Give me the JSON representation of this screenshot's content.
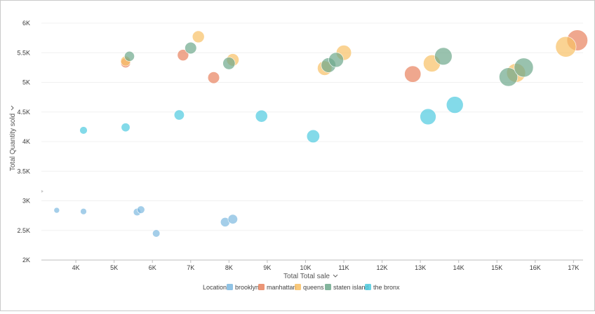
{
  "chart_data": {
    "type": "scatter",
    "variant": "bubble",
    "xlabel": "Total Total sale",
    "ylabel": "Total Quantity sold",
    "xlim": [
      3100,
      17250
    ],
    "ylim": [
      2000,
      6000
    ],
    "x_ticks": [
      {
        "value": 4000,
        "label": "4K"
      },
      {
        "value": 5000,
        "label": "5K"
      },
      {
        "value": 6000,
        "label": "6K"
      },
      {
        "value": 7000,
        "label": "7K"
      },
      {
        "value": 8000,
        "label": "8K"
      },
      {
        "value": 9000,
        "label": "9K"
      },
      {
        "value": 10000,
        "label": "10K"
      },
      {
        "value": 11000,
        "label": "11K"
      },
      {
        "value": 12000,
        "label": "12K"
      },
      {
        "value": 13000,
        "label": "13K"
      },
      {
        "value": 14000,
        "label": "14K"
      },
      {
        "value": 15000,
        "label": "15K"
      },
      {
        "value": 16000,
        "label": "16K"
      },
      {
        "value": 17000,
        "label": "17K"
      }
    ],
    "y_ticks": [
      {
        "value": 2000,
        "label": "2K"
      },
      {
        "value": 2500,
        "label": "2.5K"
      },
      {
        "value": 3000,
        "label": "3K"
      },
      {
        "value": 3500,
        "label": "3.5K"
      },
      {
        "value": 4000,
        "label": "4K"
      },
      {
        "value": 4500,
        "label": "4.5K"
      },
      {
        "value": 5000,
        "label": "5K"
      },
      {
        "value": 5500,
        "label": "5.5K"
      },
      {
        "value": 6000,
        "label": "6K"
      }
    ],
    "grid": true,
    "legend_title": "Location",
    "legend_position": "bottom",
    "series": [
      {
        "name": "brooklyn",
        "color": "#7db9e0",
        "points": [
          [
            3500,
            2840
          ],
          [
            4200,
            2820
          ],
          [
            5600,
            2810
          ],
          [
            5700,
            2850
          ],
          [
            6100,
            2450
          ],
          [
            7900,
            2640
          ],
          [
            8100,
            2690
          ]
        ]
      },
      {
        "name": "manhattan",
        "color": "#e8825e",
        "points": [
          [
            5300,
            5330
          ],
          [
            6800,
            5460
          ],
          [
            7600,
            5080
          ],
          [
            12800,
            5140
          ],
          [
            17100,
            5710
          ]
        ]
      },
      {
        "name": "queens",
        "color": "#f8c065",
        "points": [
          [
            5300,
            5360
          ],
          [
            7200,
            5770
          ],
          [
            8100,
            5380
          ],
          [
            10500,
            5240
          ],
          [
            11000,
            5500
          ],
          [
            13300,
            5320
          ],
          [
            15500,
            5160
          ],
          [
            16800,
            5600
          ]
        ]
      },
      {
        "name": "staten island",
        "color": "#6da88c",
        "points": [
          [
            5400,
            5440
          ],
          [
            7000,
            5580
          ],
          [
            8000,
            5320
          ],
          [
            10600,
            5290
          ],
          [
            10800,
            5380
          ],
          [
            13600,
            5440
          ],
          [
            15300,
            5090
          ],
          [
            15700,
            5250
          ]
        ]
      },
      {
        "name": "the bronx",
        "color": "#4fcbdf",
        "points": [
          [
            4200,
            4190
          ],
          [
            5300,
            4240
          ],
          [
            6700,
            4450
          ],
          [
            8850,
            4430
          ],
          [
            10200,
            4090
          ],
          [
            13200,
            4420
          ],
          [
            13900,
            4620
          ]
        ]
      }
    ]
  }
}
